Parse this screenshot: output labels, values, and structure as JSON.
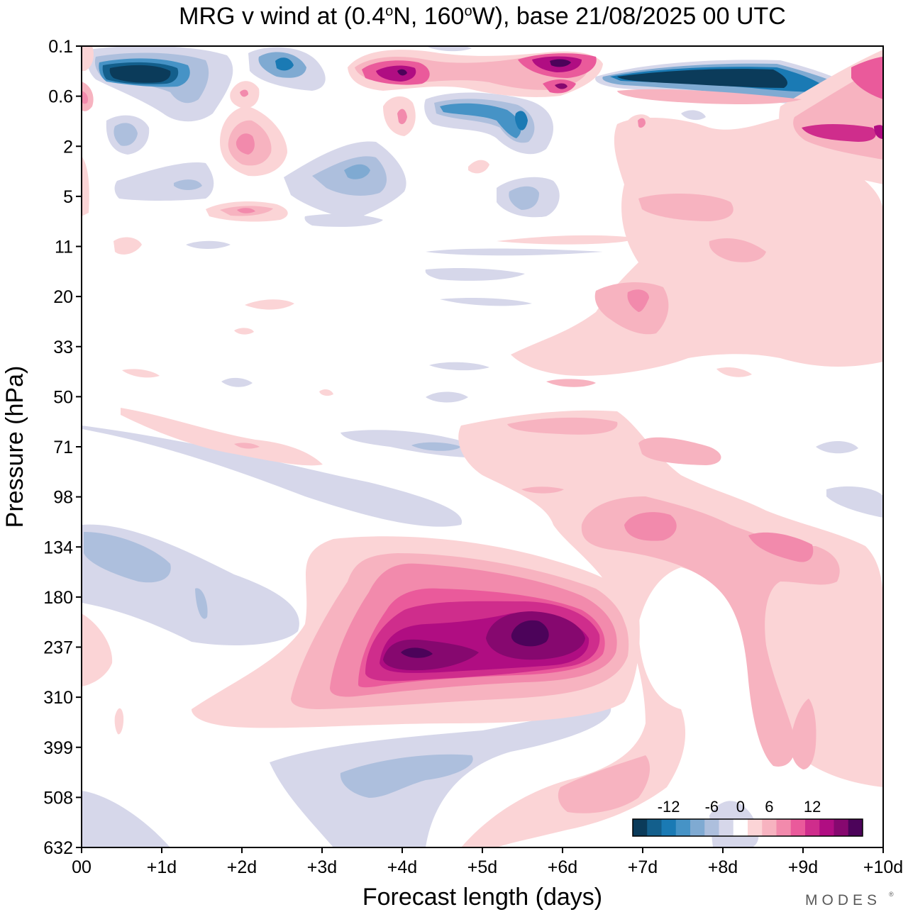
{
  "chart_data": {
    "type": "heatmap",
    "title": "MRG v wind at (0.4°N, 160°W),  base 21/08/2025  00 UTC",
    "title_parts": {
      "prefix": "MRG v wind at (0.4",
      "deg1": "o",
      "mid": "N, 160",
      "deg2": "o",
      "suffix": "W),  base 21/08/2025  00 UTC"
    },
    "xlabel": "Forecast length (days)",
    "ylabel": "Pressure (hPa)",
    "x_ticks": [
      "00",
      "+1d",
      "+2d",
      "+3d",
      "+4d",
      "+5d",
      "+6d",
      "+7d",
      "+8d",
      "+9d",
      "+10d"
    ],
    "x_range_days": [
      0,
      10
    ],
    "y_ticks": [
      "0.1",
      "0.6",
      "2",
      "5",
      "11",
      "20",
      "33",
      "50",
      "71",
      "98",
      "134",
      "180",
      "237",
      "310",
      "399",
      "508",
      "632"
    ],
    "y_scale": "model levels, pressure increasing downward",
    "colorbar": {
      "tick_labels": [
        "-12",
        "-6",
        "0",
        "6",
        "12"
      ],
      "tick_values": [
        -12,
        -6,
        0,
        6,
        12
      ],
      "levels": [
        -16,
        -14,
        -12,
        -10,
        -8,
        -6,
        -4,
        -2,
        2,
        4,
        6,
        8,
        10,
        12,
        14,
        16
      ],
      "colors": [
        "#0b3b5a",
        "#135f8c",
        "#1a7ab4",
        "#4693c6",
        "#7faad2",
        "#adbfdd",
        "#d6d7ea",
        "#ffffff",
        "#fbd4d6",
        "#f7b3c0",
        "#f28aac",
        "#ea5a9b",
        "#cf2d8c",
        "#b00d82",
        "#86086f",
        "#4c035a"
      ]
    },
    "features": [
      {
        "label": "strong positive core",
        "day": 5.5,
        "pressure_hPa": 237,
        "value": 16
      },
      {
        "label": "positive lobe",
        "day": 4.5,
        "pressure_hPa": 260,
        "value": 14
      },
      {
        "label": "negative core",
        "day": 0.7,
        "pressure_hPa": 0.3,
        "value": -16
      },
      {
        "label": "negative band",
        "day": 8.2,
        "pressure_hPa": 0.4,
        "value": -16
      },
      {
        "label": "positive core",
        "day": 6.0,
        "pressure_hPa": 0.2,
        "value": 14
      },
      {
        "label": "positive core",
        "day": 4.0,
        "pressure_hPa": 0.3,
        "value": 12
      },
      {
        "label": "positive band",
        "day": 7.7,
        "pressure_hPa": 115,
        "value": 6
      },
      {
        "label": "positive band",
        "day": 9.0,
        "pressure_hPa": 140,
        "value": 6
      },
      {
        "label": "weak negative",
        "day": 1.0,
        "pressure_hPa": 140,
        "value": -4
      },
      {
        "label": "weak negative",
        "day": 4.3,
        "pressure_hPa": 470,
        "value": -4
      }
    ]
  },
  "brand": {
    "name": "MODES",
    "mark": "®"
  }
}
